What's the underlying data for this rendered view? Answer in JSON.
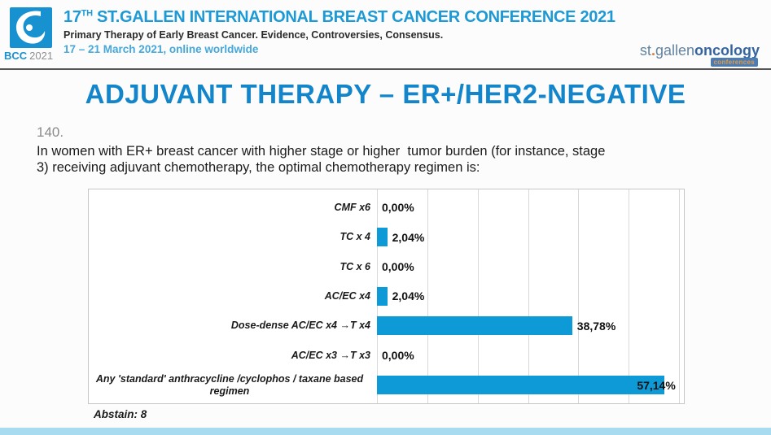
{
  "header": {
    "badge": {
      "name": "BCC",
      "year": "2021"
    },
    "title_num": "17",
    "title_sup": "TH",
    "title_rest": " ST.GALLEN INTERNATIONAL BREAST CANCER CONFERENCE 2021",
    "subtitle": "Primary Therapy of Early Breast Cancer. Evidence, Controversies, Consensus.",
    "dates": "17 – 21 March 2021, online worldwide",
    "brand": {
      "st": "st",
      "dot": ".",
      "gallen": "gallen",
      "oncology": "oncology",
      "tag": "conferences"
    }
  },
  "slide": {
    "title": "ADJUVANT THERAPY – ER+/HER2-NEGATIVE",
    "question_number": "140.",
    "question_text": "In women with ER+ breast cancer with higher stage or higher  tumor burden (for instance, stage\n3) receiving adjuvant chemotherapy, the optimal chemotherapy regimen is:",
    "abstain_label": "Abstain: 8"
  },
  "chart_data": {
    "type": "bar",
    "orientation": "horizontal",
    "title": "",
    "categories": [
      "CMF x6",
      "TC x 4",
      "TC x 6",
      "AC/EC x4",
      "Dose-dense AC/EC x4 →T x4",
      "AC/EC x3 →T x3",
      "Any 'standard' anthracycline /cyclophos / taxane based regimen"
    ],
    "values": [
      0.0,
      2.04,
      0.0,
      2.04,
      38.78,
      0.0,
      57.14
    ],
    "value_labels": [
      "0,00%",
      "2,04%",
      "0,00%",
      "2,04%",
      "38,78%",
      "0,00%",
      "57,14%"
    ],
    "xlim": [
      0,
      60
    ],
    "gridline_interval": 10,
    "grid": true,
    "legend": false,
    "bar_color": "#0e9ad6",
    "abstain_count": 8
  },
  "colors": {
    "header_blue": "#1d9ad5",
    "dates_blue": "#45a7da",
    "slide_title_blue": "#1285cb",
    "bar_blue": "#0e9ad6",
    "bottom_bar_blue": "#a8daf0",
    "question_number_gray": "#8a8a8a",
    "brand_light_blue": "#64839f",
    "brand_dark_blue": "#36649e",
    "brand_orange": "#e07b39"
  }
}
